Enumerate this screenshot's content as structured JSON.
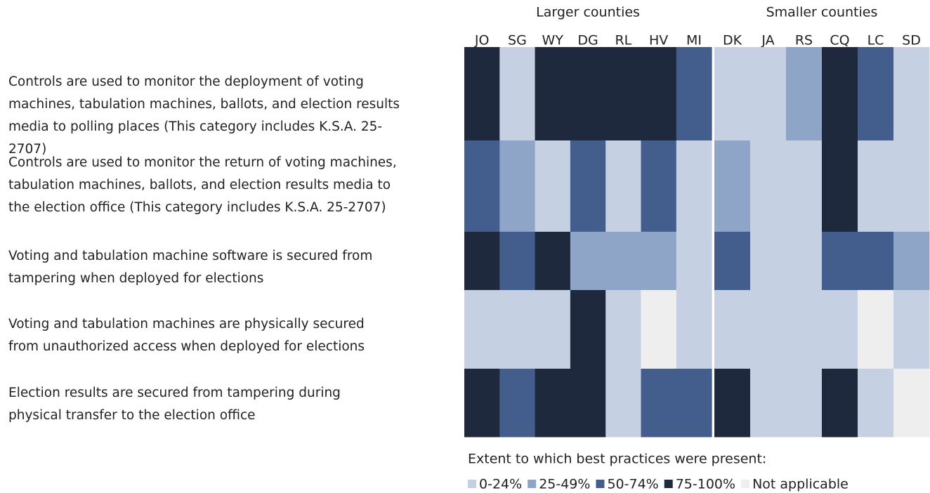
{
  "chart_data": {
    "type": "heatmap",
    "groups": [
      {
        "name": "Larger counties",
        "columns": [
          "JO",
          "SG",
          "WY",
          "DG",
          "RL",
          "HV",
          "MI"
        ]
      },
      {
        "name": "Smaller counties",
        "columns": [
          "DK",
          "JA",
          "RS",
          "CQ",
          "LC",
          "SD"
        ]
      }
    ],
    "rows": [
      {
        "label": [
          "Controls are used to monitor the deployment of voting",
          "machines, tabulation machines, ballots, and election results",
          "media to polling places (This category includes K.S.A. 25-",
          "2707)"
        ],
        "cells": [
          "75-100%",
          "0-24%",
          "75-100%",
          "75-100%",
          "75-100%",
          "75-100%",
          "50-74%",
          "0-24%",
          "0-24%",
          "25-49%",
          "75-100%",
          "50-74%",
          "0-24%"
        ]
      },
      {
        "label": [
          "Controls are used to monitor the return of voting machines,",
          "tabulation machines, ballots, and election results media to",
          "the election office (This category includes K.S.A. 25-2707)"
        ],
        "cells": [
          "50-74%",
          "25-49%",
          "0-24%",
          "50-74%",
          "0-24%",
          "50-74%",
          "0-24%",
          "25-49%",
          "0-24%",
          "0-24%",
          "75-100%",
          "0-24%",
          "0-24%"
        ]
      },
      {
        "label": [
          "Voting and tabulation machine software is secured from",
          "tampering when deployed for elections"
        ],
        "cells": [
          "75-100%",
          "50-74%",
          "75-100%",
          "25-49%",
          "25-49%",
          "25-49%",
          "0-24%",
          "50-74%",
          "0-24%",
          "0-24%",
          "50-74%",
          "50-74%",
          "25-49%"
        ]
      },
      {
        "label": [
          "Voting and tabulation machines are physically secured",
          "from unauthorized access when deployed for elections"
        ],
        "cells": [
          "0-24%",
          "0-24%",
          "0-24%",
          "75-100%",
          "0-24%",
          "Not applicable",
          "0-24%",
          "0-24%",
          "0-24%",
          "0-24%",
          "0-24%",
          "Not applicable",
          "0-24%"
        ]
      },
      {
        "label": [
          "Election results are secured from tampering during",
          "physical transfer to the election office"
        ],
        "cells": [
          "75-100%",
          "50-74%",
          "75-100%",
          "75-100%",
          "0-24%",
          "50-74%",
          "50-74%",
          "75-100%",
          "0-24%",
          "0-24%",
          "75-100%",
          "0-24%",
          "Not applicable"
        ]
      }
    ],
    "legend": {
      "title": "Extent to which best practices were present:",
      "items": [
        {
          "label": "0-24%",
          "color": "#c5d0e3"
        },
        {
          "label": "25-49%",
          "color": "#8fa5c8"
        },
        {
          "label": "50-74%",
          "color": "#435e8c"
        },
        {
          "label": "75-100%",
          "color": "#1e293d"
        },
        {
          "label": "Not applicable",
          "color": "#eeeeee"
        }
      ]
    }
  }
}
